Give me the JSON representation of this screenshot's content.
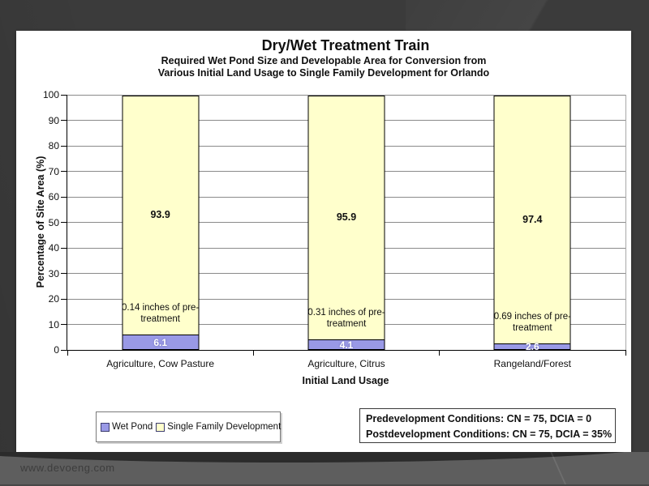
{
  "slide": {
    "title": "Dry/Wet Treatment Train",
    "subtitle_line1": "Required Wet Pond Size and Developable Area for Conversion from",
    "subtitle_line2": "Various Initial Land Usage to Single Family Development for Orlando"
  },
  "chart_data": {
    "type": "bar",
    "stacked": true,
    "title": "Dry/Wet Treatment Train",
    "subtitle": "Required Wet Pond Size and Developable Area for Conversion from Various Initial Land Usage to Single Family Development for Orlando",
    "categories": [
      "Agriculture, Cow Pasture",
      "Agriculture, Citrus",
      "Rangeland/Forest"
    ],
    "series": [
      {
        "name": "Wet Pond",
        "color": "#9999e6",
        "values": [
          6.1,
          4.1,
          2.6
        ]
      },
      {
        "name": "Single Family Development",
        "color": "#ffffcc",
        "values": [
          93.9,
          95.9,
          97.4
        ]
      }
    ],
    "bar_annotations": [
      "0.14 inches of pre-treatment",
      "0.31 inches of pre-treatment",
      "0.69 inches of pre-treatment"
    ],
    "xlabel": "Initial Land Usage",
    "ylabel": "Percentage of Site Area (%)",
    "ylim": [
      0,
      100
    ],
    "yticks": [
      0,
      10,
      20,
      30,
      40,
      50,
      60,
      70,
      80,
      90,
      100
    ],
    "grid": true,
    "legend_position": "bottom-left"
  },
  "conditions_box": {
    "line1": "Predevelopment Conditions:  CN = 75, DCIA = 0",
    "line2": "Postdevelopment Conditions:  CN = 75, DCIA = 35%"
  },
  "footer": {
    "watermark": "www.devoeng.com"
  },
  "colors": {
    "background": "#3b3b3b",
    "slide": "#ffffff",
    "footer_band": "#5e5e5e",
    "wet_pond": "#9999e6",
    "single_family": "#ffffcc",
    "gridline": "#8a8a8a"
  }
}
